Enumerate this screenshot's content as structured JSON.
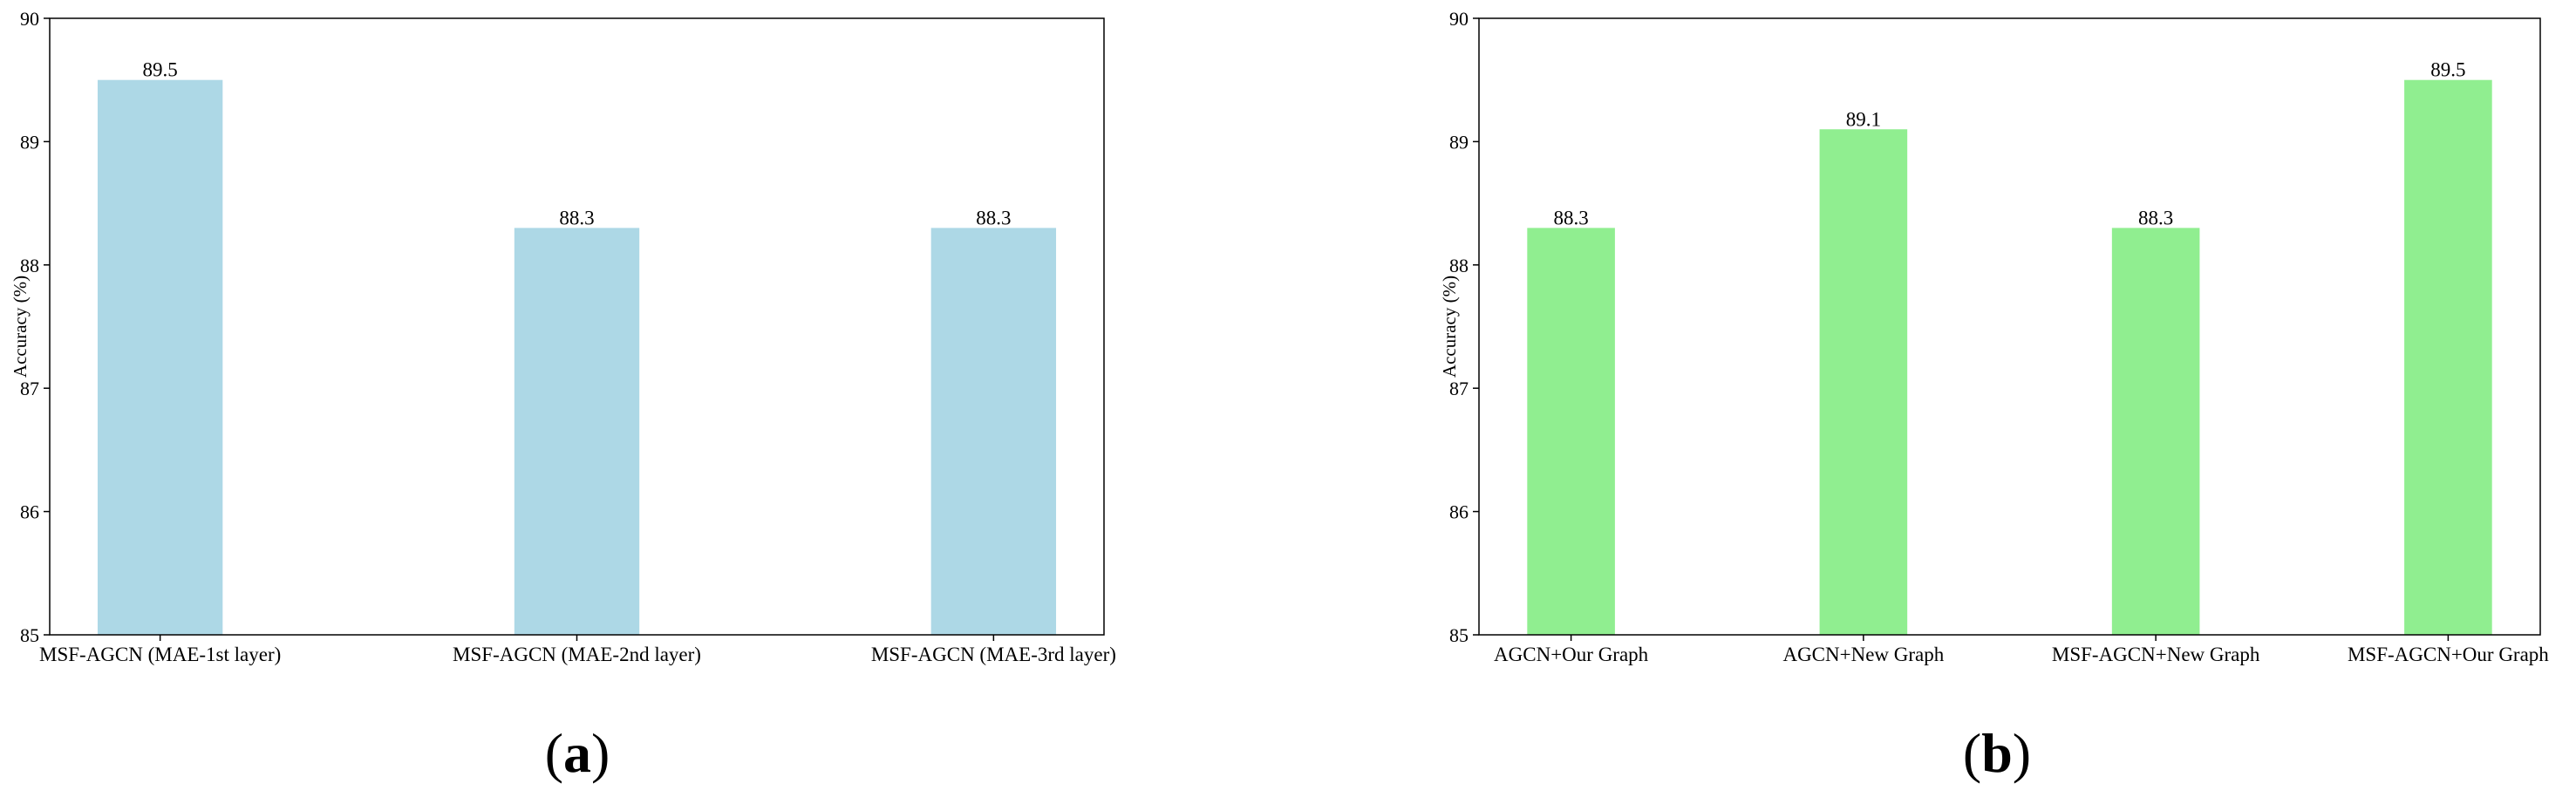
{
  "chart_data": [
    {
      "type": "bar",
      "panel_label": "a",
      "ylabel": "Accuracy (%)",
      "ylim": [
        85,
        90
      ],
      "yticks": [
        "85",
        "86",
        "87",
        "88",
        "89",
        "90"
      ],
      "categories": [
        "MSF-AGCN (MAE-1st layer)",
        "MSF-AGCN (MAE-2nd layer)",
        "MSF-AGCN (MAE-3rd layer)"
      ],
      "values": [
        89.5,
        88.3,
        88.3
      ],
      "value_labels": [
        "89.5",
        "88.3",
        "88.3"
      ],
      "bar_color": "#add8e6",
      "grid": false
    },
    {
      "type": "bar",
      "panel_label": "b",
      "ylabel": "Accuracy (%)",
      "ylim": [
        85,
        90
      ],
      "yticks": [
        "85",
        "86",
        "87",
        "88",
        "89",
        "90"
      ],
      "categories": [
        "AGCN+Our Graph",
        "AGCN+New Graph",
        "MSF-AGCN+New Graph",
        "MSF-AGCN+Our Graph"
      ],
      "values": [
        88.3,
        89.1,
        88.3,
        89.5
      ],
      "value_labels": [
        "88.3",
        "89.1",
        "88.3",
        "89.5"
      ],
      "bar_color": "#90ee90",
      "grid": false
    }
  ]
}
